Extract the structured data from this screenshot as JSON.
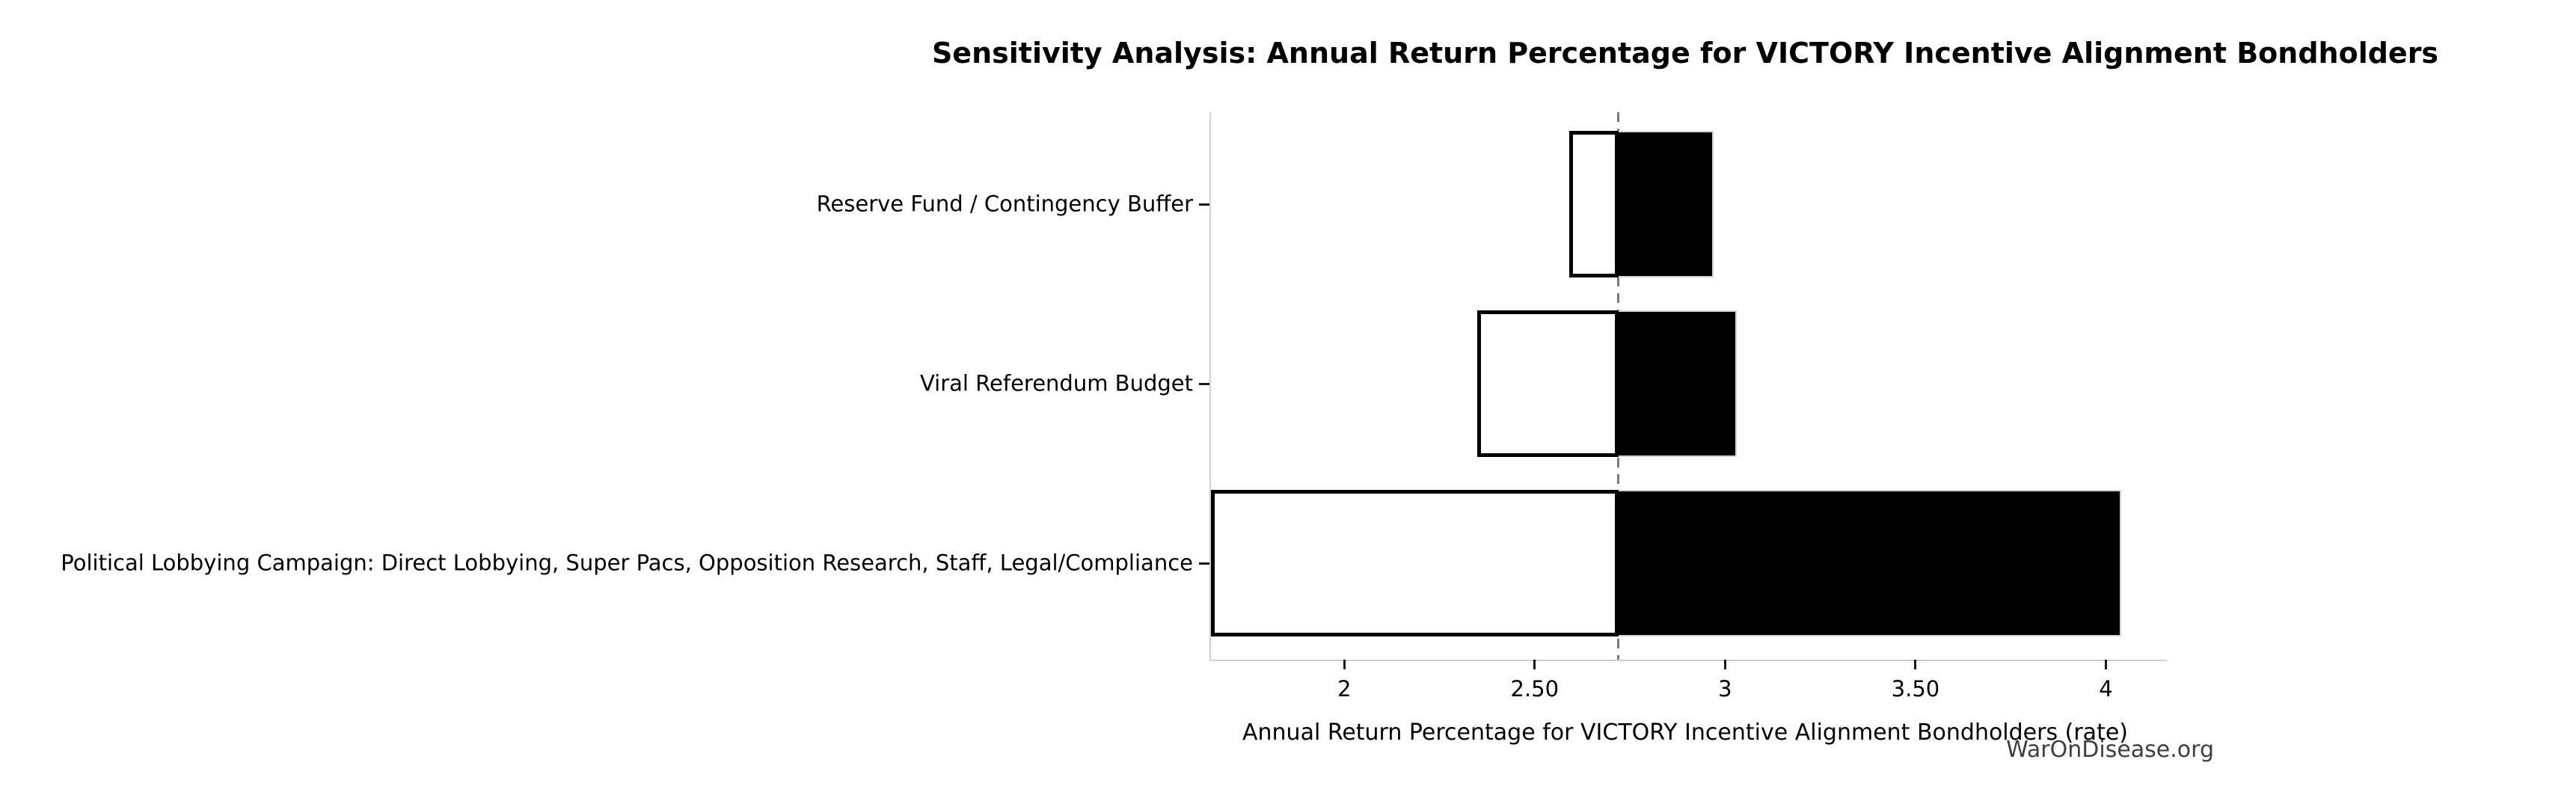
{
  "watermark": "WarOnDisease.org",
  "chart_data": {
    "type": "bar",
    "orientation": "horizontal",
    "variant": "tornado-sensitivity",
    "title": "Sensitivity Analysis: Annual Return Percentage for VICTORY Incentive Alignment Bondholders",
    "xlabel": "Annual Return Percentage for VICTORY Incentive Alignment Bondholders (rate)",
    "ylabel": "",
    "categories": [
      "Reserve Fund / Contingency Buffer",
      "Viral Referendum Budget",
      "Political Lobbying Campaign: Direct Lobbying, Super Pacs, Opposition Research, Staff, Legal/Compliance"
    ],
    "baseline": 2.72,
    "series": [
      {
        "name": "low",
        "values": [
          2.59,
          2.35,
          1.65
        ]
      },
      {
        "name": "high",
        "values": [
          2.97,
          3.03,
          4.04
        ]
      }
    ],
    "xlim": [
      1.65,
      4.16
    ],
    "xticks": [
      {
        "value": 2,
        "label": "2"
      },
      {
        "value": 2.5,
        "label": "2.50"
      },
      {
        "value": 3,
        "label": "3"
      },
      {
        "value": 3.5,
        "label": "3.50"
      },
      {
        "value": 4,
        "label": "4"
      }
    ],
    "grid": false,
    "legend": false
  },
  "colors": {
    "background": "#ffffff",
    "low_bar_fill": "#ffffff",
    "low_bar_border": "#000000",
    "high_bar_fill": "#000000",
    "high_bar_border": "#d3d3d3",
    "baseline_line": "#7a7a7a",
    "axis_spine": "#d0d0d0",
    "tick": "#1a1a1a",
    "watermark": "#3f3f3f"
  }
}
